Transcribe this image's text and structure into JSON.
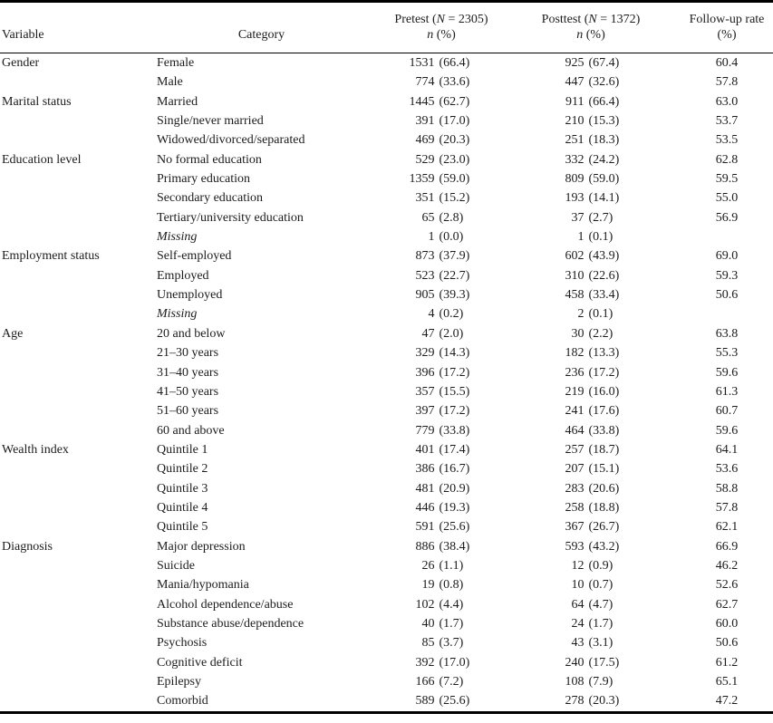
{
  "header": {
    "variable_label": "Variable",
    "category_label": "Category",
    "pretest": {
      "pre": "Pretest (",
      "nsym": "N",
      "rest": " = 2305)",
      "sub_n": "n",
      "sub_rest": " (%)"
    },
    "posttest": {
      "pre": "Posttest (",
      "nsym": "N",
      "rest": " = 1372)",
      "sub_n": "n",
      "sub_rest": " (%)"
    },
    "followup": {
      "line1": "Follow-up rate",
      "line2": "(%)"
    }
  },
  "colors": {
    "text": "#1c1c1c",
    "rule": "#000000",
    "background": "#ffffff"
  },
  "rows": [
    {
      "variable": "Gender",
      "category": "Female",
      "italic": false,
      "pretest_n": "1531",
      "pretest_pct": "(66.4)",
      "posttest_n": "925",
      "posttest_pct": "(67.4)",
      "followup": "60.4"
    },
    {
      "variable": "",
      "category": "Male",
      "italic": false,
      "pretest_n": "774",
      "pretest_pct": "(33.6)",
      "posttest_n": "447",
      "posttest_pct": "(32.6)",
      "followup": "57.8"
    },
    {
      "variable": "Marital status",
      "category": "Married",
      "italic": false,
      "pretest_n": "1445",
      "pretest_pct": "(62.7)",
      "posttest_n": "911",
      "posttest_pct": "(66.4)",
      "followup": "63.0"
    },
    {
      "variable": "",
      "category": "Single/never married",
      "italic": false,
      "pretest_n": "391",
      "pretest_pct": "(17.0)",
      "posttest_n": "210",
      "posttest_pct": "(15.3)",
      "followup": "53.7"
    },
    {
      "variable": "",
      "category": "Widowed/divorced/separated",
      "italic": false,
      "pretest_n": "469",
      "pretest_pct": "(20.3)",
      "posttest_n": "251",
      "posttest_pct": "(18.3)",
      "followup": "53.5"
    },
    {
      "variable": "Education level",
      "category": "No formal education",
      "italic": false,
      "pretest_n": "529",
      "pretest_pct": "(23.0)",
      "posttest_n": "332",
      "posttest_pct": "(24.2)",
      "followup": "62.8"
    },
    {
      "variable": "",
      "category": "Primary education",
      "italic": false,
      "pretest_n": "1359",
      "pretest_pct": "(59.0)",
      "posttest_n": "809",
      "posttest_pct": "(59.0)",
      "followup": "59.5"
    },
    {
      "variable": "",
      "category": "Secondary education",
      "italic": false,
      "pretest_n": "351",
      "pretest_pct": "(15.2)",
      "posttest_n": "193",
      "posttest_pct": "(14.1)",
      "followup": "55.0"
    },
    {
      "variable": "",
      "category": "Tertiary/university education",
      "italic": false,
      "pretest_n": "65",
      "pretest_pct": "(2.8)",
      "posttest_n": "37",
      "posttest_pct": "(2.7)",
      "followup": "56.9"
    },
    {
      "variable": "",
      "category": "Missing",
      "italic": true,
      "pretest_n": "1",
      "pretest_pct": "(0.0)",
      "posttest_n": "1",
      "posttest_pct": "(0.1)",
      "followup": ""
    },
    {
      "variable": "Employment status",
      "category": "Self-employed",
      "italic": false,
      "pretest_n": "873",
      "pretest_pct": "(37.9)",
      "posttest_n": "602",
      "posttest_pct": "(43.9)",
      "followup": "69.0"
    },
    {
      "variable": "",
      "category": "Employed",
      "italic": false,
      "pretest_n": "523",
      "pretest_pct": "(22.7)",
      "posttest_n": "310",
      "posttest_pct": "(22.6)",
      "followup": "59.3"
    },
    {
      "variable": "",
      "category": "Unemployed",
      "italic": false,
      "pretest_n": "905",
      "pretest_pct": "(39.3)",
      "posttest_n": "458",
      "posttest_pct": "(33.4)",
      "followup": "50.6"
    },
    {
      "variable": "",
      "category": "Missing",
      "italic": true,
      "pretest_n": "4",
      "pretest_pct": "(0.2)",
      "posttest_n": "2",
      "posttest_pct": "(0.1)",
      "followup": ""
    },
    {
      "variable": "Age",
      "category": "20 and below",
      "italic": false,
      "pretest_n": "47",
      "pretest_pct": "(2.0)",
      "posttest_n": "30",
      "posttest_pct": "(2.2)",
      "followup": "63.8"
    },
    {
      "variable": "",
      "category": "21–30 years",
      "italic": false,
      "pretest_n": "329",
      "pretest_pct": "(14.3)",
      "posttest_n": "182",
      "posttest_pct": "(13.3)",
      "followup": "55.3"
    },
    {
      "variable": "",
      "category": "31–40 years",
      "italic": false,
      "pretest_n": "396",
      "pretest_pct": "(17.2)",
      "posttest_n": "236",
      "posttest_pct": "(17.2)",
      "followup": "59.6"
    },
    {
      "variable": "",
      "category": "41–50 years",
      "italic": false,
      "pretest_n": "357",
      "pretest_pct": "(15.5)",
      "posttest_n": "219",
      "posttest_pct": "(16.0)",
      "followup": "61.3"
    },
    {
      "variable": "",
      "category": "51–60 years",
      "italic": false,
      "pretest_n": "397",
      "pretest_pct": "(17.2)",
      "posttest_n": "241",
      "posttest_pct": "(17.6)",
      "followup": "60.7"
    },
    {
      "variable": "",
      "category": "60 and above",
      "italic": false,
      "pretest_n": "779",
      "pretest_pct": "(33.8)",
      "posttest_n": "464",
      "posttest_pct": "(33.8)",
      "followup": "59.6"
    },
    {
      "variable": "Wealth index",
      "category": "Quintile 1",
      "italic": false,
      "pretest_n": "401",
      "pretest_pct": "(17.4)",
      "posttest_n": "257",
      "posttest_pct": "(18.7)",
      "followup": "64.1"
    },
    {
      "variable": "",
      "category": "Quintile 2",
      "italic": false,
      "pretest_n": "386",
      "pretest_pct": "(16.7)",
      "posttest_n": "207",
      "posttest_pct": "(15.1)",
      "followup": "53.6"
    },
    {
      "variable": "",
      "category": "Quintile 3",
      "italic": false,
      "pretest_n": "481",
      "pretest_pct": "(20.9)",
      "posttest_n": "283",
      "posttest_pct": "(20.6)",
      "followup": "58.8"
    },
    {
      "variable": "",
      "category": "Quintile 4",
      "italic": false,
      "pretest_n": "446",
      "pretest_pct": "(19.3)",
      "posttest_n": "258",
      "posttest_pct": "(18.8)",
      "followup": "57.8"
    },
    {
      "variable": "",
      "category": "Quintile 5",
      "italic": false,
      "pretest_n": "591",
      "pretest_pct": "(25.6)",
      "posttest_n": "367",
      "posttest_pct": "(26.7)",
      "followup": "62.1"
    },
    {
      "variable": "Diagnosis",
      "category": "Major depression",
      "italic": false,
      "pretest_n": "886",
      "pretest_pct": "(38.4)",
      "posttest_n": "593",
      "posttest_pct": "(43.2)",
      "followup": "66.9"
    },
    {
      "variable": "",
      "category": "Suicide",
      "italic": false,
      "pretest_n": "26",
      "pretest_pct": "(1.1)",
      "posttest_n": "12",
      "posttest_pct": "(0.9)",
      "followup": "46.2"
    },
    {
      "variable": "",
      "category": "Mania/hypomania",
      "italic": false,
      "pretest_n": "19",
      "pretest_pct": "(0.8)",
      "posttest_n": "10",
      "posttest_pct": "(0.7)",
      "followup": "52.6"
    },
    {
      "variable": "",
      "category": "Alcohol dependence/abuse",
      "italic": false,
      "pretest_n": "102",
      "pretest_pct": "(4.4)",
      "posttest_n": "64",
      "posttest_pct": "(4.7)",
      "followup": "62.7"
    },
    {
      "variable": "",
      "category": "Substance abuse/dependence",
      "italic": false,
      "pretest_n": "40",
      "pretest_pct": "(1.7)",
      "posttest_n": "24",
      "posttest_pct": "(1.7)",
      "followup": "60.0"
    },
    {
      "variable": "",
      "category": "Psychosis",
      "italic": false,
      "pretest_n": "85",
      "pretest_pct": "(3.7)",
      "posttest_n": "43",
      "posttest_pct": "(3.1)",
      "followup": "50.6"
    },
    {
      "variable": "",
      "category": "Cognitive deficit",
      "italic": false,
      "pretest_n": "392",
      "pretest_pct": "(17.0)",
      "posttest_n": "240",
      "posttest_pct": "(17.5)",
      "followup": "61.2"
    },
    {
      "variable": "",
      "category": "Epilepsy",
      "italic": false,
      "pretest_n": "166",
      "pretest_pct": "(7.2)",
      "posttest_n": "108",
      "posttest_pct": "(7.9)",
      "followup": "65.1"
    },
    {
      "variable": "",
      "category": "Comorbid",
      "italic": false,
      "pretest_n": "589",
      "pretest_pct": "(25.6)",
      "posttest_n": "278",
      "posttest_pct": "(20.3)",
      "followup": "47.2"
    }
  ]
}
